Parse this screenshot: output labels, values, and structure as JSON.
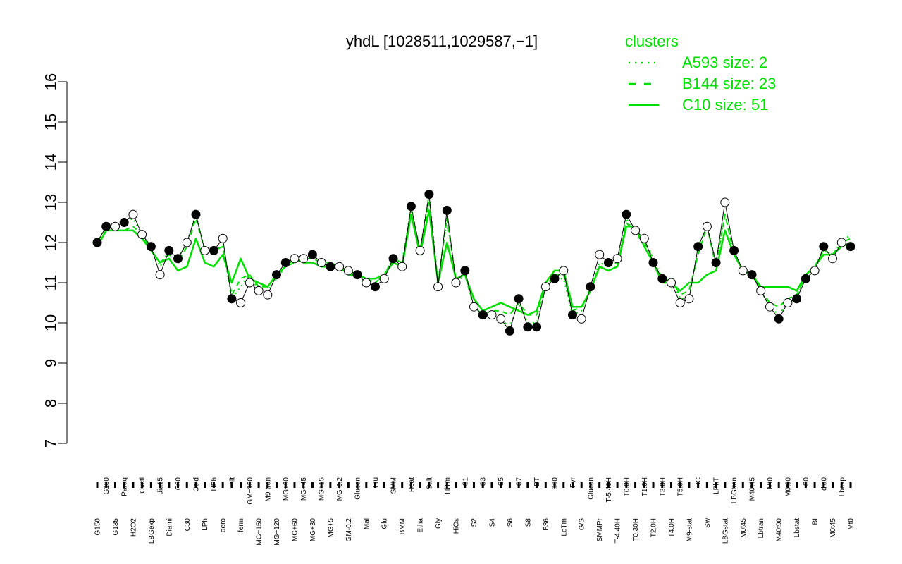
{
  "colors": {
    "accent": "#00e000",
    "line": "#000000",
    "dark_point": "#000000",
    "light_point": "#ffffff"
  },
  "chart_data": {
    "type": "line",
    "title": "yhdL [1028511,1029587,−1]",
    "xlabel": "",
    "ylabel": "",
    "ylim": [
      7,
      16
    ],
    "yticks": [
      "7",
      "8",
      "9",
      "10",
      "11",
      "12",
      "13",
      "14",
      "15",
      "16"
    ],
    "grid": false,
    "legend": {
      "title": "clusters",
      "placement": "top-right",
      "items": [
        {
          "label": "A593 size: 2",
          "style": "dotted"
        },
        {
          "label": "B144 size: 23",
          "style": "dashed"
        },
        {
          "label": "C10 size: 51",
          "style": "solid"
        }
      ]
    },
    "categories": [
      "G150",
      "G180",
      "G135",
      "Paraq",
      "H2O2",
      "Oxctl",
      "LBGexp",
      "dia15",
      "Diami",
      "C90",
      "C30",
      "Cold",
      "LPh",
      "HPh",
      "aero",
      "nit",
      "ferm",
      "GM+150",
      "MG+150",
      "M9-tran",
      "MG+120",
      "MG+90",
      "MG+60",
      "MG+45",
      "MG+30",
      "MG+15",
      "MG+5",
      "MG-0.2",
      "GM-0.2",
      "Glucon",
      "Mal",
      "Fru",
      "Glu",
      "SMM",
      "BMM",
      "Heat",
      "Etha",
      "Salt",
      "Gly",
      "HiTm",
      "HiOs",
      "S1",
      "S2",
      "S3",
      "S4",
      "S5",
      "S6",
      "S7",
      "S8",
      "BT",
      "B36",
      "B60",
      "LoTm",
      "Pyr",
      "G/S",
      "Glucon",
      "SMMPr",
      "T-5.40H",
      "T-4.40H",
      "T0.0H",
      "T0.30H",
      "T1.0H",
      "T2.0H",
      "T3.0H",
      "T4.0H",
      "T5.0H",
      "M9-stat",
      "BC",
      "Sw",
      "LPhT",
      "LBGstat",
      "LBGtran",
      "M0t45",
      "M40t45",
      "Lbtran",
      "Mt0",
      "M40t90",
      "M0t90",
      "Lbstat",
      "S0",
      "BI",
      "dia0",
      "M0t45",
      "Lbexp",
      "Mt0"
    ],
    "categories_shown": [
      "G150",
      "G180",
      "G135",
      "Paraq",
      "H2O2",
      "Oxctl",
      "LBGexp",
      "dia15",
      "Diami",
      "C90",
      "C30",
      "Cold",
      "LPh",
      "HPh",
      "aero",
      "nit",
      "ferm",
      "GM+150",
      "MG+150",
      "M9-tran",
      "MG+120",
      "MG+90",
      "MG+60",
      "MG+45",
      "MG+30",
      "MG+15",
      "MG+5",
      "MG-0.2",
      "GM-0.2",
      "Glucon",
      "Mal",
      "Fru",
      "Glu",
      "SMM",
      "BMM",
      "Heat",
      "Etha",
      "Salt",
      "Gly",
      "HiTm",
      "HiOs",
      "S1",
      "S2",
      "S3",
      "S4",
      "S5",
      "S6",
      "S7",
      "S8",
      "BT",
      "B36",
      "B60",
      "LoTm",
      "Pyr",
      "G/S",
      "Glucon",
      "SMMPr",
      "T-5.40H",
      "T-4.40H",
      "T0.0H",
      "T0.30H",
      "T1.0H",
      "T2.0H",
      "T3.0H",
      "T4.0H",
      "T5.0H",
      "M9-stat",
      "BC",
      "Sw",
      "LPhT",
      "LBGstat",
      "LBGtran",
      "M0t45",
      "M40t45",
      "Lbtran",
      "Mt0",
      "M40t90",
      "M0t90",
      "Lbstat",
      "S0",
      "BI",
      "dia0",
      "M0t45",
      "Lbexp",
      "Mt0"
    ],
    "series": [
      {
        "values": [
          12.0,
          12.4,
          12.4,
          12.5,
          12.6,
          12.2,
          11.9,
          11.4,
          11.8,
          11.6,
          12.0,
          12.7,
          11.8,
          11.8,
          11.9,
          10.6,
          10.9,
          11.2,
          10.8,
          10.8,
          11.1,
          11.4,
          11.5,
          11.6,
          11.6,
          11.5,
          11.4,
          11.4,
          11.3,
          11.2,
          11.1,
          11.0,
          11.2,
          11.6,
          11.5,
          12.9,
          11.8,
          13.2,
          11.0,
          12.6,
          11.0,
          11.2,
          10.4,
          10.2,
          10.3,
          10.1,
          9.9,
          10.5,
          10.0,
          10.0,
          10.9,
          11.1,
          11.1,
          10.2,
          10.3,
          10.9,
          11.5,
          11.4,
          11.5,
          12.6,
          12.2,
          12.1,
          11.6,
          11.1,
          11.1,
          10.6,
          10.6,
          11.9,
          12.4,
          11.5,
          12.7,
          11.8,
          11.3,
          11.2,
          10.8,
          10.4,
          10.2,
          10.5,
          10.6,
          11.2,
          11.4,
          11.8,
          11.7,
          12.0,
          12.2
        ]
      },
      {
        "values": [
          11.9,
          12.3,
          12.3,
          12.3,
          12.4,
          12.2,
          11.8,
          11.5,
          11.7,
          11.5,
          11.9,
          12.6,
          11.8,
          11.8,
          11.9,
          10.7,
          11.1,
          11.2,
          10.9,
          10.9,
          11.2,
          11.4,
          11.5,
          11.6,
          11.6,
          11.5,
          11.5,
          11.4,
          11.3,
          11.2,
          11.1,
          11.0,
          11.2,
          11.6,
          11.5,
          12.8,
          11.8,
          13.0,
          11.0,
          12.6,
          11.1,
          11.2,
          10.4,
          10.2,
          10.3,
          10.3,
          10.2,
          10.5,
          10.2,
          10.2,
          10.9,
          11.2,
          11.2,
          10.3,
          10.4,
          10.8,
          11.4,
          11.3,
          11.4,
          12.5,
          12.2,
          12.0,
          11.6,
          11.0,
          11.1,
          10.7,
          10.8,
          11.7,
          12.4,
          11.4,
          12.7,
          11.7,
          11.3,
          11.2,
          10.8,
          10.5,
          10.4,
          10.6,
          10.7,
          11.2,
          11.4,
          11.8,
          11.7,
          12.0,
          12.1
        ]
      },
      {
        "values": [
          11.9,
          12.3,
          12.3,
          12.3,
          12.3,
          12.1,
          11.8,
          11.5,
          11.6,
          11.3,
          11.4,
          12.1,
          11.5,
          11.4,
          11.7,
          11.0,
          11.6,
          11.1,
          11.0,
          10.9,
          11.2,
          11.4,
          11.6,
          11.5,
          11.5,
          11.4,
          11.4,
          11.4,
          11.2,
          11.2,
          11.1,
          11.1,
          11.2,
          11.5,
          11.4,
          12.7,
          11.7,
          12.8,
          11.0,
          12.0,
          11.1,
          11.2,
          10.6,
          10.3,
          10.4,
          10.5,
          10.4,
          10.3,
          10.2,
          10.3,
          11.0,
          11.3,
          11.3,
          10.4,
          10.4,
          10.8,
          11.4,
          11.3,
          11.4,
          12.4,
          12.4,
          11.9,
          11.5,
          11.0,
          11.0,
          10.8,
          11.0,
          11.0,
          11.2,
          11.3,
          12.3,
          11.7,
          11.3,
          11.2,
          10.9,
          10.9,
          10.9,
          10.9,
          10.8,
          11.2,
          11.4,
          11.7,
          11.7,
          11.9,
          12.0
        ]
      }
    ],
    "points": [
      12.0,
      12.4,
      12.4,
      12.5,
      12.7,
      12.2,
      11.9,
      11.2,
      11.8,
      11.6,
      12.0,
      12.7,
      11.8,
      11.8,
      12.1,
      10.6,
      10.5,
      11.0,
      10.8,
      10.7,
      11.2,
      11.5,
      11.6,
      11.6,
      11.7,
      11.5,
      11.4,
      11.4,
      11.3,
      11.2,
      11.0,
      10.9,
      11.1,
      11.6,
      11.4,
      12.9,
      11.8,
      13.2,
      10.9,
      12.8,
      11.0,
      11.3,
      10.4,
      10.2,
      10.2,
      10.1,
      9.8,
      10.6,
      9.9,
      9.9,
      10.9,
      11.1,
      11.3,
      10.2,
      10.1,
      10.9,
      11.7,
      11.5,
      11.6,
      12.7,
      12.3,
      12.1,
      11.5,
      11.1,
      11.0,
      10.5,
      10.6,
      11.9,
      12.4,
      11.5,
      13.0,
      11.8,
      11.3,
      11.2,
      10.8,
      10.4,
      10.1,
      10.5,
      10.6,
      11.1,
      11.3,
      11.9,
      11.6,
      12.0,
      11.9
    ],
    "point_fill": [
      "dark",
      "dark",
      "light",
      "dark",
      "light",
      "light",
      "dark",
      "light",
      "dark",
      "dark",
      "light",
      "dark",
      "light",
      "dark",
      "light",
      "dark",
      "light",
      "light",
      "light",
      "light",
      "dark",
      "dark",
      "light",
      "light",
      "dark",
      "light",
      "dark",
      "light",
      "light",
      "dark",
      "light",
      "dark",
      "light",
      "dark",
      "light",
      "dark",
      "light",
      "dark",
      "light",
      "dark",
      "light",
      "dark",
      "light",
      "dark",
      "light",
      "light",
      "dark",
      "dark",
      "dark",
      "dark",
      "light",
      "dark",
      "light",
      "dark",
      "light",
      "dark",
      "light",
      "dark",
      "light",
      "dark",
      "light",
      "light",
      "dark",
      "dark",
      "light",
      "light",
      "light",
      "dark",
      "light",
      "dark",
      "light",
      "dark",
      "light",
      "dark",
      "light",
      "light",
      "dark",
      "light",
      "dark",
      "dark",
      "light",
      "dark",
      "light",
      "light",
      "dark"
    ]
  }
}
